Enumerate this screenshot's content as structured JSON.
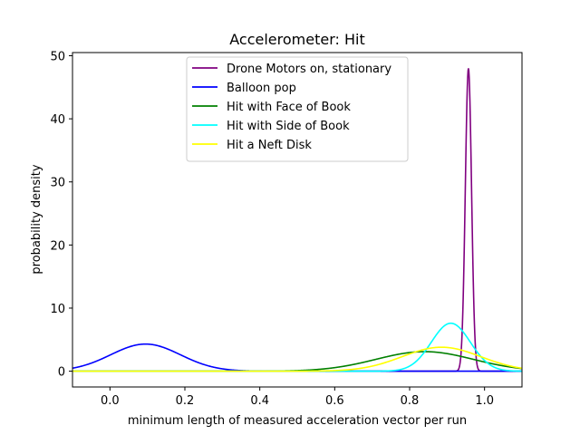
{
  "chart_data": {
    "type": "line",
    "title": "Accelerometer: Hit",
    "xlabel": "minimum length of measured acceleration vector per run",
    "ylabel": "probability density",
    "xlim": [
      -0.1,
      1.1
    ],
    "ylim": [
      -2.5,
      50.5
    ],
    "xticks": [
      0.0,
      0.2,
      0.4,
      0.6,
      0.8,
      1.0
    ],
    "xtick_labels": [
      "0.0",
      "0.2",
      "0.4",
      "0.6",
      "0.8",
      "1.0"
    ],
    "yticks": [
      0,
      10,
      20,
      30,
      40,
      50
    ],
    "ytick_labels": [
      "0",
      "10",
      "20",
      "30",
      "40",
      "50"
    ],
    "grid": false,
    "legend_position": "top-center",
    "series": [
      {
        "name": "Drone Motors on, stationary",
        "color": "#800080",
        "distribution": "normal",
        "mean": 0.957,
        "std": 0.0083,
        "peak": 48.0
      },
      {
        "name": "Balloon pop",
        "color": "#0000ff",
        "distribution": "normal",
        "mean": 0.095,
        "std": 0.093,
        "peak": 4.3
      },
      {
        "name": "Hit with Face of Book",
        "color": "#008000",
        "distribution": "normal",
        "mean": 0.84,
        "std": 0.13,
        "peak": 3.1
      },
      {
        "name": "Hit with Side of Book",
        "color": "#00ffff",
        "distribution": "normal",
        "mean": 0.91,
        "std": 0.052,
        "peak": 7.6
      },
      {
        "name": "Hit a Neft Disk",
        "color": "#ffff00",
        "distribution": "normal",
        "mean": 0.885,
        "std": 0.105,
        "peak": 3.8
      }
    ]
  }
}
